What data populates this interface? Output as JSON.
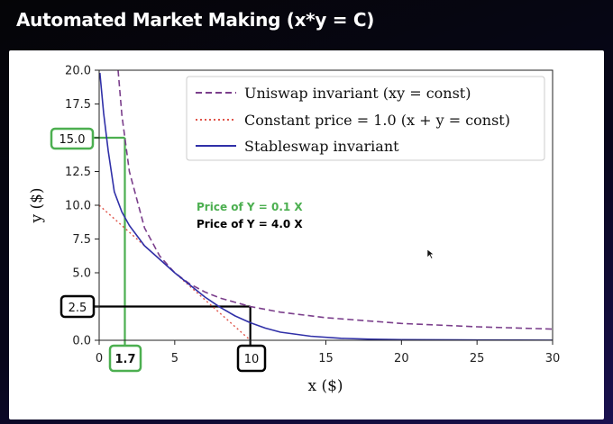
{
  "slide": {
    "title": "Automated Market Making (x*y = C)"
  },
  "chart_data": {
    "type": "line",
    "xlabel": "x ($)",
    "ylabel": "y ($)",
    "xlim": [
      0,
      30
    ],
    "ylim": [
      0,
      20
    ],
    "x_ticks": [
      "0",
      "5",
      "10",
      "15",
      "20",
      "25",
      "30"
    ],
    "y_ticks": [
      "0.0",
      "2.5",
      "5.0",
      "7.5",
      "10.0",
      "12.5",
      "15.0",
      "17.5",
      "20.0"
    ],
    "grid": false,
    "legend_position": "top-right",
    "series": [
      {
        "name": "Uniswap invariant (xy = const)",
        "style": "dashed",
        "color": "#7b3f8c",
        "x": [
          1.25,
          1.5,
          2,
          3,
          4,
          5,
          6,
          7,
          8,
          10,
          12,
          15,
          20,
          25,
          30
        ],
        "y": [
          20,
          16.67,
          12.5,
          8.33,
          6.25,
          5,
          4.17,
          3.57,
          3.13,
          2.5,
          2.08,
          1.67,
          1.25,
          1.0,
          0.83
        ]
      },
      {
        "name": "Constant price = 1.0 (x + y = const)",
        "style": "dotted",
        "color": "#e0554a",
        "x": [
          0,
          10
        ],
        "y": [
          10,
          0
        ]
      },
      {
        "name": "Stableswap invariant",
        "style": "solid",
        "color": "#3030a8",
        "x": [
          0.05,
          0.3,
          0.6,
          1.0,
          1.5,
          2.0,
          3.0,
          4.0,
          5.0,
          6.0,
          7.0,
          8.0,
          9.0,
          10.0,
          11.0,
          12.0,
          14.0,
          16.0,
          18.0,
          20.0,
          25.0,
          30.0
        ],
        "y": [
          19.8,
          16.8,
          14.0,
          11.0,
          9.5,
          8.5,
          7.0,
          6.0,
          5.0,
          4.1,
          3.2,
          2.45,
          1.8,
          1.3,
          0.9,
          0.6,
          0.3,
          0.15,
          0.08,
          0.05,
          0.02,
          0.01
        ]
      }
    ],
    "annotations": [
      {
        "text": "Price of Y = 0.1 X",
        "color": "#4caf50"
      },
      {
        "text": "Price of Y = 4.0 X",
        "color": "#000000"
      }
    ],
    "highlight_boxes": [
      {
        "axis": "y",
        "label": "15.0",
        "value": 15.0,
        "color": "#4caf50"
      },
      {
        "axis": "x",
        "label": "1.7",
        "value": 1.7,
        "color": "#4caf50"
      },
      {
        "axis": "y",
        "label": "2.5",
        "value": 2.5,
        "color": "#000000"
      },
      {
        "axis": "x",
        "label": "10",
        "value": 10,
        "color": "#000000"
      }
    ]
  }
}
